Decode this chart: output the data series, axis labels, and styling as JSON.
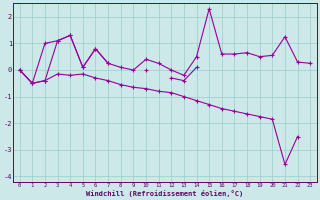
{
  "xlabel": "Windchill (Refroidissement éolien,°C)",
  "background_color": "#cce8e8",
  "grid_color": "#99cccc",
  "line_color": "#990099",
  "xlim": [
    -0.5,
    23.5
  ],
  "ylim": [
    -4.2,
    2.5
  ],
  "xticks": [
    0,
    1,
    2,
    3,
    4,
    5,
    6,
    7,
    8,
    9,
    10,
    11,
    12,
    13,
    14,
    15,
    16,
    17,
    18,
    19,
    20,
    21,
    22,
    23
  ],
  "yticks": [
    -4,
    -3,
    -2,
    -1,
    0,
    1,
    2
  ],
  "series": [
    [
      0,
      -0.5,
      1,
      1.1,
      1.3,
      0.1,
      0.8,
      0.25,
      0.1,
      0.0,
      0.4,
      0.25,
      0.0,
      -0.2,
      0.5,
      2.3,
      0.6,
      0.6,
      0.65,
      0.5,
      0.55,
      1.25,
      0.3,
      0.25
    ],
    [
      0,
      -0.5,
      -0.4,
      1.1,
      1.3,
      0.1,
      0.8,
      0.25,
      null,
      null,
      null,
      null,
      null,
      null,
      null,
      null,
      null,
      null,
      null,
      null,
      null,
      null,
      null,
      null
    ],
    [
      null,
      null,
      null,
      null,
      null,
      null,
      null,
      null,
      null,
      null,
      0.0,
      null,
      -0.3,
      -0.4,
      0.1,
      null,
      null,
      null,
      null,
      null,
      null,
      null,
      null,
      null
    ],
    [
      0,
      -0.5,
      -0.4,
      -0.15,
      -0.2,
      -0.15,
      -0.3,
      -0.4,
      -0.55,
      -0.65,
      -0.7,
      -0.8,
      -0.85,
      -1.0,
      -1.15,
      -1.3,
      -1.45,
      -1.55,
      -1.65,
      -1.75,
      -1.85,
      -3.55,
      -2.5,
      null
    ]
  ]
}
